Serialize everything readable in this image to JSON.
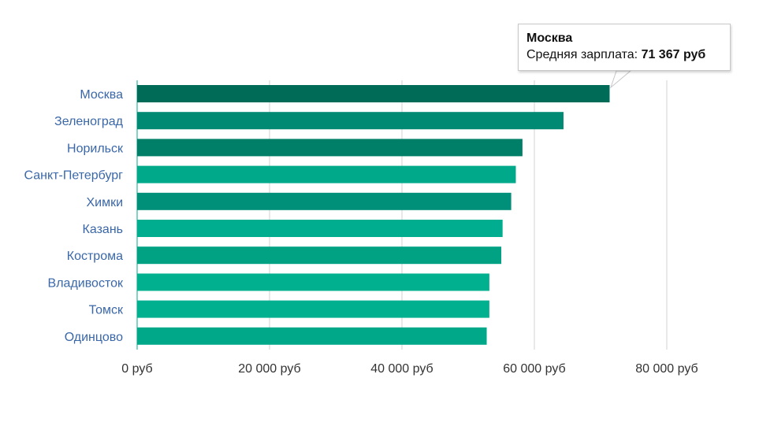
{
  "chart_data": {
    "type": "bar",
    "orientation": "horizontal",
    "categories": [
      "Москва",
      "Зеленоград",
      "Норильск",
      "Санкт-Петербург",
      "Химки",
      "Казань",
      "Кострома",
      "Владивосток",
      "Томск",
      "Одинцово"
    ],
    "values": [
      71367,
      64400,
      58200,
      57200,
      56500,
      55200,
      55000,
      53200,
      53200,
      52800
    ],
    "bar_colors": [
      "#006b56",
      "#008a74",
      "#007f68",
      "#00a98a",
      "#008f78",
      "#00ad8e",
      "#00a283",
      "#00b08f",
      "#00b08f",
      "#00a88a"
    ],
    "x_ticks": [
      0,
      20000,
      40000,
      60000,
      80000
    ],
    "x_tick_labels": [
      "0 руб",
      "20 000 руб",
      "40 000 руб",
      "60 000 руб",
      "80 000 руб"
    ],
    "xlim": [
      0,
      80000
    ],
    "grid": true,
    "title": "",
    "xlabel": "",
    "ylabel": ""
  },
  "tooltip": {
    "title": "Москва",
    "label": "Средняя зарплата: ",
    "value": "71 367 руб"
  },
  "colors": {
    "category_label": "#3a67a8",
    "gridline": "#d0d0d0",
    "axis_line": "#00a98a"
  }
}
